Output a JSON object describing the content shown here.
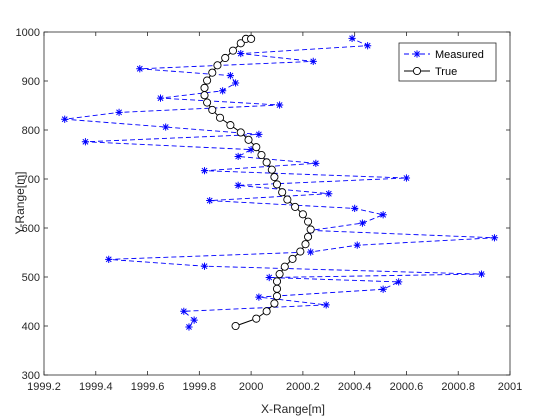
{
  "chart_data": {
    "type": "line",
    "title": "",
    "xlabel": "X-Range[m]",
    "ylabel": "Y-Range[m]",
    "xlim": [
      1999.2,
      2001
    ],
    "ylim": [
      300,
      1000
    ],
    "xticks": [
      "1999.2",
      "1999.4",
      "1999.6",
      "1999.8",
      "2000",
      "2000.2",
      "2000.4",
      "2000.6",
      "2000.8",
      "2001"
    ],
    "yticks": [
      "300",
      "400",
      "500",
      "600",
      "700",
      "800",
      "900",
      "1000"
    ],
    "grid": false,
    "legend_position": "top-right",
    "series": [
      {
        "name": "Measured",
        "style": "dashed-star",
        "color": "#0000FF",
        "x": [
          1999.76,
          1999.78,
          1999.74,
          2000.29,
          2000.03,
          2000.51,
          2000.57,
          2000.07,
          2000.89,
          1999.82,
          1999.45,
          2000.23,
          2000.41,
          2000.94,
          2000.23,
          2000.43,
          2000.51,
          2000.4,
          1999.84,
          2000.3,
          1999.95,
          2000.6,
          1999.82,
          2000.25,
          1999.95,
          2000.0,
          1999.36,
          2000.03,
          1999.67,
          1999.28,
          1999.49,
          2000.11,
          1999.65,
          1999.89,
          1999.94,
          1999.92,
          1999.57,
          2000.24,
          1999.96,
          2000.45,
          2000.39
        ],
        "y": [
          398,
          412,
          430,
          443,
          459,
          475,
          490,
          499,
          506,
          522,
          536,
          551,
          565,
          580,
          595,
          610,
          627,
          640,
          656,
          670,
          687,
          702,
          717,
          732,
          746,
          760,
          776,
          791,
          806,
          822,
          836,
          851,
          865,
          880,
          896,
          911,
          925,
          940,
          956,
          972,
          987
        ]
      },
      {
        "name": "True",
        "style": "solid-circle",
        "color": "#000000",
        "x": [
          1999.94,
          2000.02,
          2000.06,
          2000.09,
          2000.1,
          2000.1,
          2000.1,
          2000.11,
          2000.13,
          2000.16,
          2000.19,
          2000.21,
          2000.22,
          2000.23,
          2000.22,
          2000.2,
          2000.17,
          2000.14,
          2000.12,
          2000.1,
          2000.09,
          2000.08,
          2000.06,
          2000.04,
          2000.02,
          1999.99,
          1999.96,
          1999.92,
          1999.88,
          1999.85,
          1999.83,
          1999.82,
          1999.82,
          1999.83,
          1999.85,
          1999.87,
          1999.9,
          1999.93,
          1999.96,
          1999.98,
          2000.0
        ],
        "y": [
          400,
          415,
          430,
          446,
          461,
          476,
          491,
          506,
          521,
          537,
          552,
          567,
          582,
          597,
          613,
          628,
          643,
          658,
          673,
          689,
          704,
          719,
          734,
          749,
          765,
          780,
          795,
          810,
          825,
          841,
          856,
          871,
          886,
          901,
          917,
          932,
          947,
          962,
          977,
          986,
          986
        ]
      }
    ]
  }
}
